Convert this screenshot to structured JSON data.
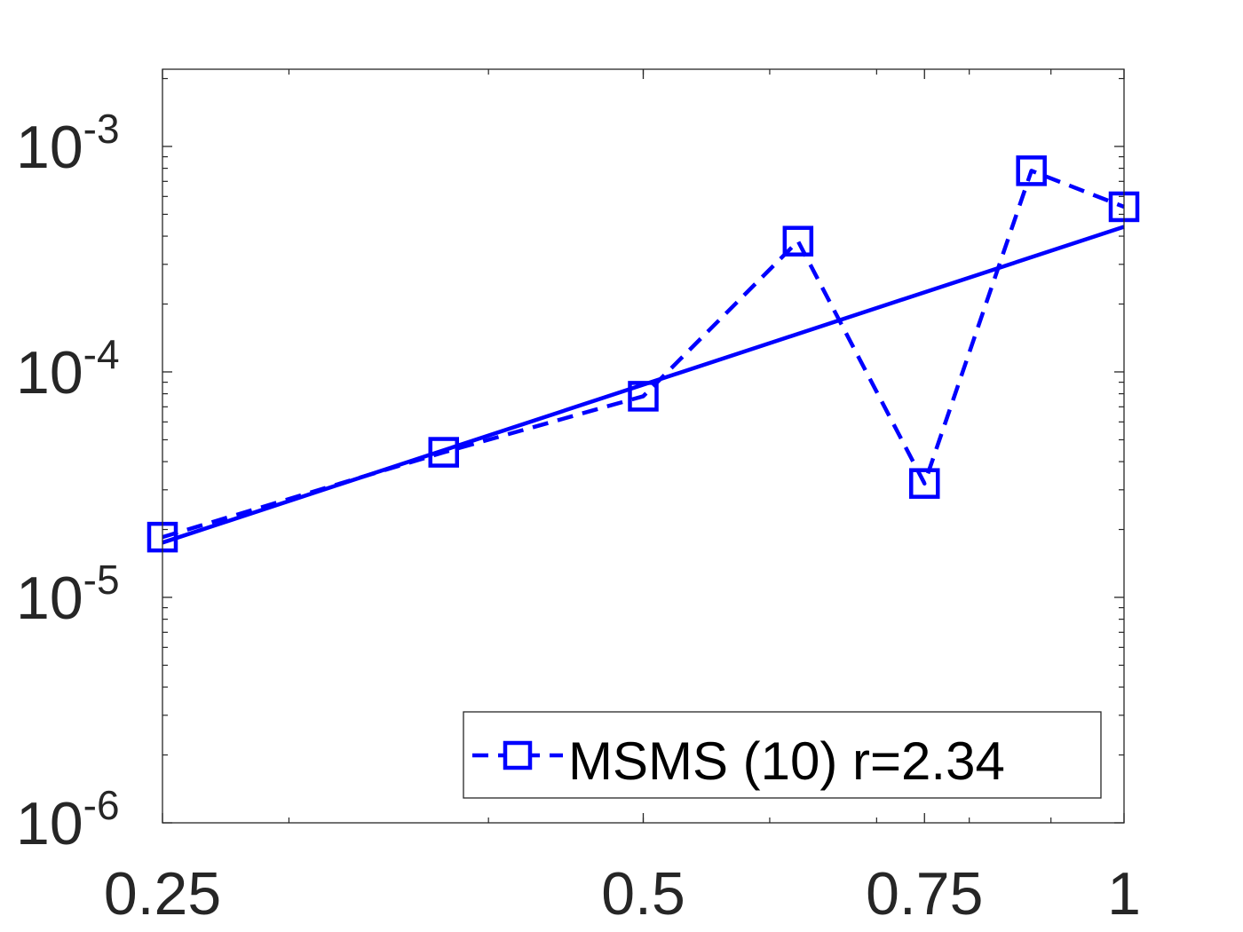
{
  "chart_data": {
    "type": "line",
    "title": "",
    "xlabel": "",
    "ylabel": "",
    "x_scale": "log",
    "y_scale": "log",
    "xlim": [
      0.25,
      1
    ],
    "ylim": [
      1e-06,
      0.0022
    ],
    "x_ticks": [
      {
        "value": 0.25,
        "label": "0.25"
      },
      {
        "value": 0.5,
        "label": "0.5"
      },
      {
        "value": 0.75,
        "label": "0.75"
      },
      {
        "value": 1,
        "label": "1"
      }
    ],
    "y_ticks": [
      {
        "value": 1e-06,
        "base": "10",
        "exp": "-6"
      },
      {
        "value": 1e-05,
        "base": "10",
        "exp": "-5"
      },
      {
        "value": 0.0001,
        "base": "10",
        "exp": "-4"
      },
      {
        "value": 0.001,
        "base": "10",
        "exp": "-3"
      }
    ],
    "grid": false,
    "legend_position": "bottom-right",
    "series": [
      {
        "name": "MSMS (10) r=2.34",
        "style": "dashed",
        "marker": "square",
        "color": "#0000ff",
        "x": [
          0.25,
          0.375,
          0.5,
          0.625,
          0.75,
          0.875,
          1
        ],
        "y": [
          1.85e-05,
          4.4e-05,
          7.8e-05,
          0.00038,
          3.2e-05,
          0.00078,
          0.00054
        ]
      },
      {
        "style": "solid",
        "color": "#0000ff",
        "x": [
          0.25,
          1
        ],
        "y": [
          1.75e-05,
          0.00044
        ]
      }
    ]
  }
}
